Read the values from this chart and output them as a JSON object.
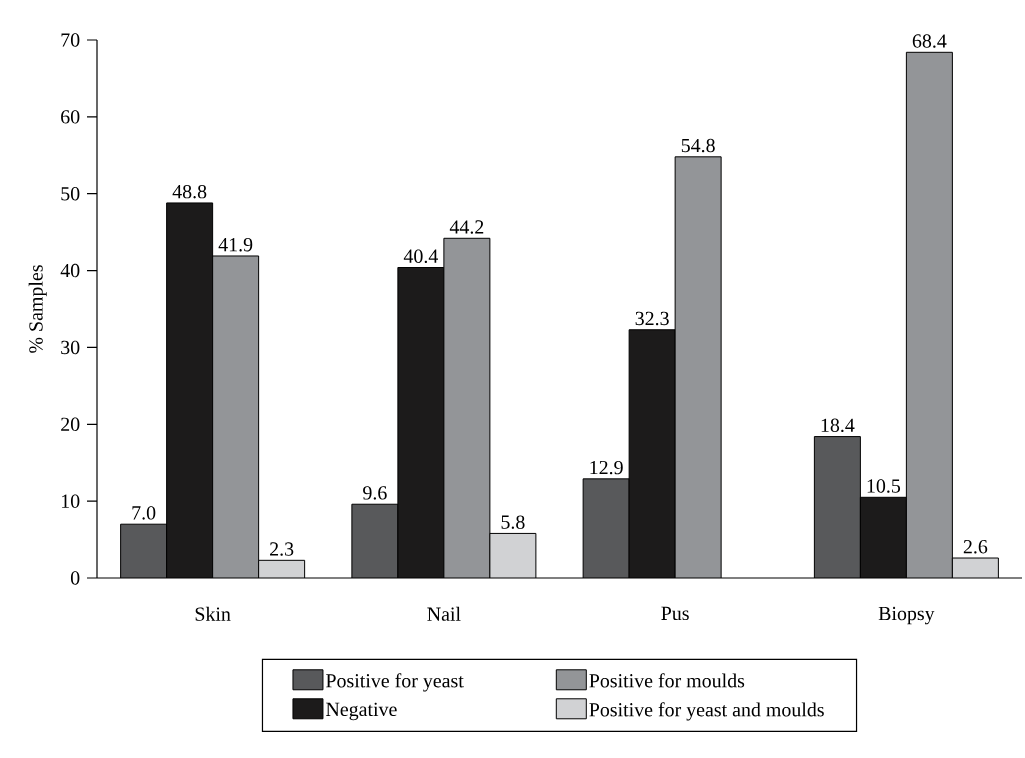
{
  "chart_data": {
    "type": "bar",
    "ylabel": "% Samples",
    "categories": [
      "Skin",
      "Nail",
      "Pus",
      "Biopsy"
    ],
    "ylim": [
      0,
      70
    ],
    "yticks": [
      0,
      10,
      20,
      30,
      40,
      50,
      60,
      70
    ],
    "legend": "bottom",
    "series": [
      {
        "name": "Positive for yeast",
        "color": "#58595b",
        "values": [
          7.0,
          9.6,
          12.9,
          18.4
        ],
        "value_labels": [
          "7.0",
          "9.6",
          "12.9",
          "18.4"
        ]
      },
      {
        "name": "Negative",
        "color": "#1c1b1b",
        "values": [
          48.8,
          40.4,
          32.3,
          10.5
        ],
        "value_labels": [
          "48.8",
          "40.4",
          "32.3",
          "10.5"
        ]
      },
      {
        "name": "Positive for moulds",
        "color": "#939598",
        "values": [
          41.9,
          44.2,
          54.8,
          68.4
        ],
        "value_labels": [
          "41.9",
          "44.2",
          "54.8",
          "68.4"
        ]
      },
      {
        "name": "Positive for yeast and moulds",
        "color": "#d1d2d4",
        "values": [
          2.3,
          5.8,
          null,
          2.6
        ],
        "value_labels": [
          "2.3",
          "5.8",
          null,
          "2.6"
        ]
      }
    ]
  }
}
